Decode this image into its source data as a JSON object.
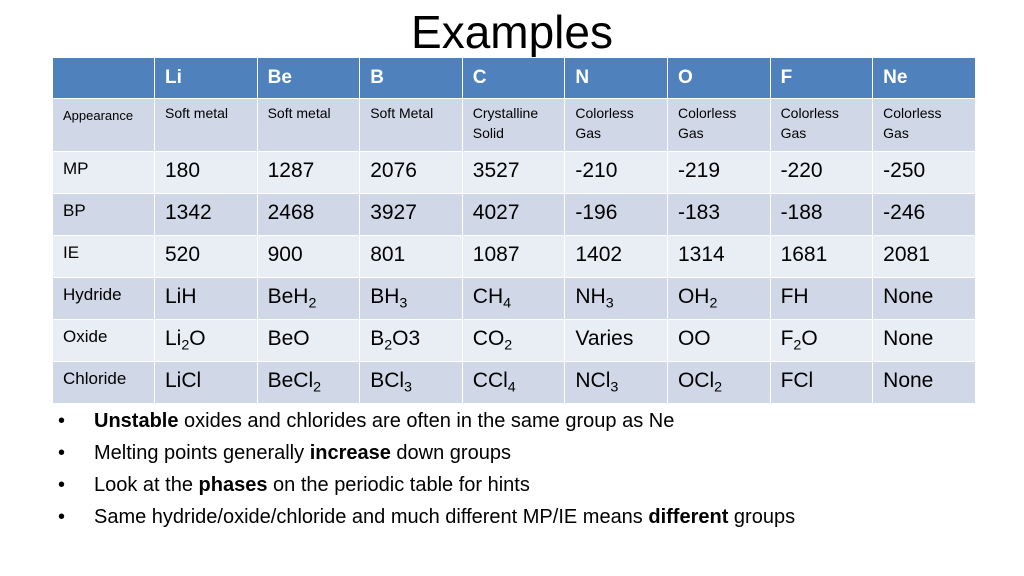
{
  "title": "Examples",
  "table": {
    "header": [
      "",
      "Li",
      "Be",
      "B",
      "C",
      "N",
      "O",
      "F",
      "Ne"
    ],
    "rows": [
      {
        "label": "Appearance",
        "cells": [
          "Soft metal",
          "Soft metal",
          "Soft Metal",
          "Crystalline Solid",
          "Colorless Gas",
          "Colorless Gas",
          "Colorless Gas",
          "Colorless Gas"
        ]
      },
      {
        "label": "MP",
        "cells": [
          "180",
          "1287",
          "2076",
          "3527",
          "-210",
          "-219",
          "-220",
          "-250"
        ]
      },
      {
        "label": "BP",
        "cells": [
          "1342",
          "2468",
          "3927",
          "4027",
          "-196",
          "-183",
          "-188",
          "-246"
        ]
      },
      {
        "label": "IE",
        "cells": [
          "520",
          "900",
          "801",
          "1087",
          "1402",
          "1314",
          "1681",
          "2081"
        ]
      },
      {
        "label": "Hydride",
        "cells": [
          [
            {
              "t": "LiH"
            }
          ],
          [
            {
              "t": "BeH"
            },
            {
              "s": "2"
            }
          ],
          [
            {
              "t": "BH"
            },
            {
              "s": "3"
            }
          ],
          [
            {
              "t": "CH"
            },
            {
              "s": "4"
            }
          ],
          [
            {
              "t": "NH"
            },
            {
              "s": "3"
            }
          ],
          [
            {
              "t": "OH"
            },
            {
              "s": "2"
            }
          ],
          [
            {
              "t": "FH"
            }
          ],
          [
            {
              "t": "None"
            }
          ]
        ]
      },
      {
        "label": "Oxide",
        "cells": [
          [
            {
              "t": "Li"
            },
            {
              "s": "2"
            },
            {
              "t": "O"
            }
          ],
          [
            {
              "t": "BeO"
            }
          ],
          [
            {
              "t": "B"
            },
            {
              "s": "2"
            },
            {
              "t": "O3"
            }
          ],
          [
            {
              "t": "CO"
            },
            {
              "s": "2"
            }
          ],
          [
            {
              "t": "Varies"
            }
          ],
          [
            {
              "t": "OO"
            }
          ],
          [
            {
              "t": "F"
            },
            {
              "s": "2"
            },
            {
              "t": "O"
            }
          ],
          [
            {
              "t": "None"
            }
          ]
        ]
      },
      {
        "label": "Chloride",
        "cells": [
          [
            {
              "t": "LiCl"
            }
          ],
          [
            {
              "t": "BeCl"
            },
            {
              "s": "2"
            }
          ],
          [
            {
              "t": "BCl"
            },
            {
              "s": "3"
            }
          ],
          [
            {
              "t": "CCl"
            },
            {
              "s": "4"
            }
          ],
          [
            {
              "t": "NCl"
            },
            {
              "s": "3"
            }
          ],
          [
            {
              "t": "OCl"
            },
            {
              "s": "2"
            }
          ],
          [
            {
              "t": "FCl"
            }
          ],
          [
            {
              "t": "None"
            }
          ]
        ]
      }
    ]
  },
  "bullets": [
    [
      {
        "b": "Unstable"
      },
      {
        "t": " oxides and chlorides are often in the same group as Ne"
      }
    ],
    [
      {
        "t": "Melting points generally "
      },
      {
        "b": "increase"
      },
      {
        "t": " down groups"
      }
    ],
    [
      {
        "t": "Look at the "
      },
      {
        "b": "phases"
      },
      {
        "t": " on the periodic table for hints"
      }
    ],
    [
      {
        "t": "Same hydride/oxide/chloride and much different MP/IE means "
      },
      {
        "b": "different"
      },
      {
        "t": " groups"
      }
    ]
  ],
  "bullet_marker": "•",
  "colors": {
    "header": "#4f81bd",
    "row_odd": "#d0d8e8",
    "row_even": "#e9edf4"
  }
}
